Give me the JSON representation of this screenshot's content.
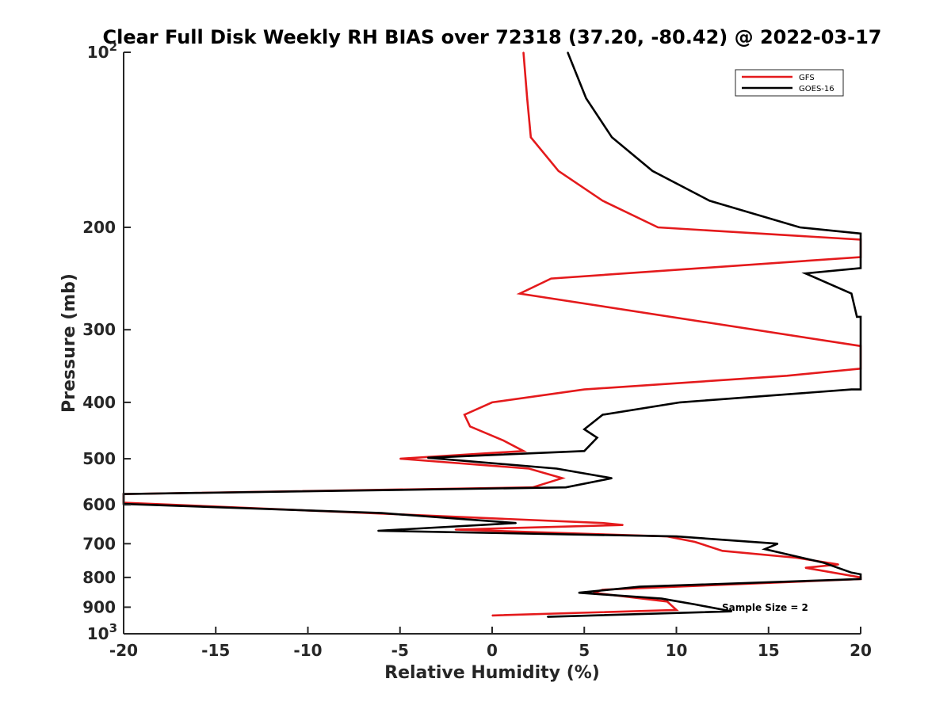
{
  "chart_data": {
    "type": "line",
    "title": "Clear Full Disk Weekly RH BIAS over 72318 (37.20, -80.42) @ 2022-03-17",
    "xlabel": "Relative Humidity (%)",
    "ylabel": "Pressure (mb)",
    "xlim": [
      -20,
      20
    ],
    "ylim": [
      100,
      1000
    ],
    "y_scale": "log",
    "y_reversed": true,
    "x_ticks": [
      -20,
      -15,
      -10,
      -5,
      0,
      5,
      10,
      15,
      20
    ],
    "x_tick_labels": [
      "-20",
      "-15",
      "-10",
      "-5",
      "0",
      "5",
      "10",
      "15",
      "20"
    ],
    "y_ticks": [
      100,
      200,
      300,
      400,
      500,
      600,
      700,
      800,
      900,
      1000
    ],
    "y_tick_labels": [
      {
        "base": "10",
        "exp": "2"
      },
      {
        "base": "200",
        "exp": ""
      },
      {
        "base": "300",
        "exp": ""
      },
      {
        "base": "400",
        "exp": ""
      },
      {
        "base": "500",
        "exp": ""
      },
      {
        "base": "600",
        "exp": ""
      },
      {
        "base": "700",
        "exp": ""
      },
      {
        "base": "800",
        "exp": ""
      },
      {
        "base": "900",
        "exp": ""
      },
      {
        "base": "10",
        "exp": "3"
      }
    ],
    "grid": false,
    "legend_position": "top-right",
    "annotation": "Sample Size = 2",
    "series": [
      {
        "name": "GFS",
        "color": "#e41a1c",
        "points": [
          [
            1.7,
            100
          ],
          [
            1.9,
            120
          ],
          [
            2.1,
            140
          ],
          [
            3.6,
            160
          ],
          [
            6.0,
            180
          ],
          [
            9.0,
            200
          ],
          [
            20.0,
            210
          ],
          [
            20.0,
            225
          ],
          [
            3.2,
            245
          ],
          [
            1.5,
            260
          ],
          [
            20.0,
            320
          ],
          [
            20.0,
            350
          ],
          [
            16.0,
            360
          ],
          [
            5.0,
            380
          ],
          [
            0.0,
            400
          ],
          [
            -1.5,
            420
          ],
          [
            -1.2,
            440
          ],
          [
            0.6,
            465
          ],
          [
            1.7,
            485
          ],
          [
            -5.0,
            500
          ],
          [
            2.0,
            520
          ],
          [
            3.8,
            540
          ],
          [
            2.2,
            560
          ],
          [
            -20.0,
            575
          ],
          [
            -20.0,
            595
          ],
          [
            6.0,
            645
          ],
          [
            7.1,
            650
          ],
          [
            -2.0,
            662
          ],
          [
            9.5,
            680
          ],
          [
            11.0,
            695
          ],
          [
            12.5,
            720
          ],
          [
            16.5,
            740
          ],
          [
            18.8,
            760
          ],
          [
            17.0,
            770
          ],
          [
            20.0,
            800
          ],
          [
            20.0,
            805
          ],
          [
            6.0,
            840
          ],
          [
            5.5,
            850
          ],
          [
            9.5,
            880
          ],
          [
            10.0,
            910
          ],
          [
            0.0,
            930
          ]
        ]
      },
      {
        "name": "GOES-16",
        "color": "#000000",
        "points": [
          [
            4.1,
            100
          ],
          [
            5.1,
            120
          ],
          [
            6.5,
            140
          ],
          [
            8.7,
            160
          ],
          [
            11.8,
            180
          ],
          [
            16.7,
            200
          ],
          [
            20.0,
            205
          ],
          [
            20.0,
            235
          ],
          [
            17.0,
            240
          ],
          [
            19.5,
            260
          ],
          [
            19.8,
            285
          ],
          [
            20.0,
            285
          ],
          [
            20.0,
            380
          ],
          [
            19.5,
            380
          ],
          [
            10.2,
            400
          ],
          [
            6.0,
            420
          ],
          [
            5.0,
            445
          ],
          [
            5.7,
            460
          ],
          [
            5.0,
            485
          ],
          [
            -3.5,
            498
          ],
          [
            3.5,
            520
          ],
          [
            6.5,
            540
          ],
          [
            4.0,
            560
          ],
          [
            -20.0,
            575
          ],
          [
            -20.0,
            598
          ],
          [
            -6.0,
            620
          ],
          [
            1.3,
            645
          ],
          [
            -6.2,
            665
          ],
          [
            10.0,
            680
          ],
          [
            15.5,
            700
          ],
          [
            14.8,
            715
          ],
          [
            18.0,
            755
          ],
          [
            19.5,
            785
          ],
          [
            20.0,
            790
          ],
          [
            20.0,
            805
          ],
          [
            8.0,
            830
          ],
          [
            4.7,
            850
          ],
          [
            9.2,
            870
          ],
          [
            11.0,
            890
          ],
          [
            13.0,
            915
          ],
          [
            3.0,
            935
          ]
        ]
      }
    ]
  }
}
